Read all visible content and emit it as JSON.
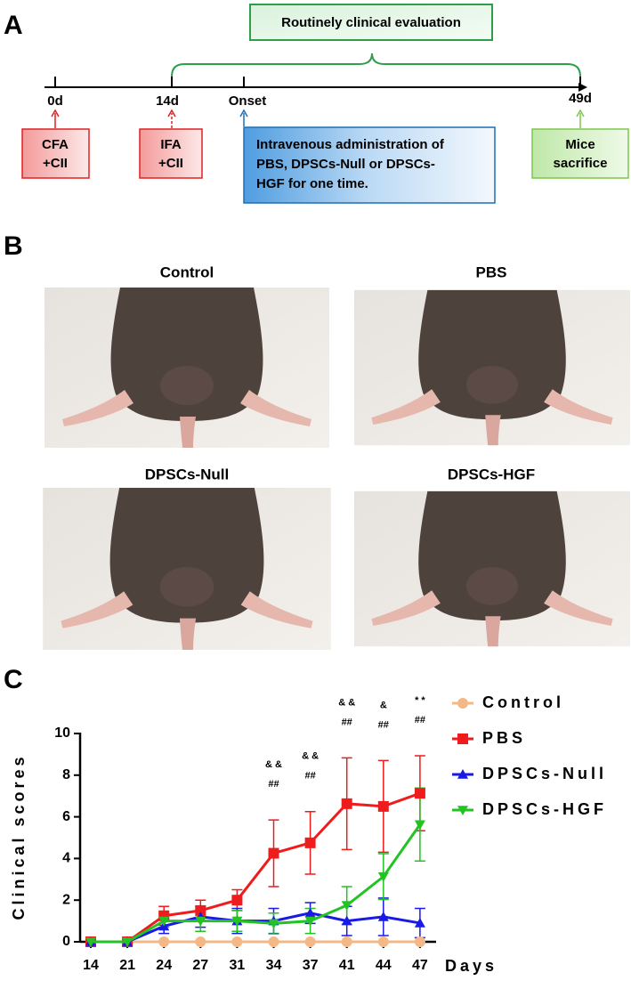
{
  "panel_a": {
    "label": "A",
    "evaluation": "Routinely clinical evaluation",
    "timeline": [
      "0d",
      "14d",
      "Onset",
      "49d"
    ],
    "boxes": [
      [
        "CFA",
        "+CII"
      ],
      [
        "IFA",
        "+CII"
      ],
      [
        "Intravenous administration of",
        "PBS, DPSCs-Null or DPSCs-",
        "HGF  for one time."
      ],
      [
        "Mice",
        "sacrifice"
      ]
    ]
  },
  "panel_b": {
    "label": "B",
    "titles": [
      "Control",
      "PBS",
      "DPSCs-Null",
      "DPSCs-HGF"
    ]
  },
  "panel_c_label": "C",
  "chart_data": {
    "type": "line",
    "ylabel": "Clinical scores",
    "xlabel": "Days",
    "categories": [
      "14",
      "21",
      "24",
      "27",
      "31",
      "34",
      "37",
      "41",
      "44",
      "47"
    ],
    "ylim": [
      0,
      10
    ],
    "yticks": [
      0,
      2,
      4,
      6,
      8,
      10
    ],
    "grid": false,
    "legend": "right",
    "series": [
      {
        "name": "Control",
        "color": "#f4b887",
        "marker": "circle",
        "values": [
          0,
          0,
          0,
          0,
          0,
          0,
          0,
          0,
          0,
          0
        ],
        "errors": [
          0,
          0,
          0,
          0,
          0,
          0,
          0,
          0,
          0,
          0
        ]
      },
      {
        "name": "PBS",
        "color": "#ee1c1c",
        "marker": "square",
        "values": [
          0,
          0,
          1.25,
          1.5,
          2.0,
          4.25,
          4.75,
          6.63,
          6.5,
          7.13
        ],
        "errors": [
          0,
          0,
          0.45,
          0.5,
          0.5,
          1.6,
          1.5,
          2.2,
          2.2,
          1.8
        ]
      },
      {
        "name": "DPSCs-Null",
        "color": "#1a1ae6",
        "marker": "triangle-up",
        "values": [
          0,
          0,
          0.75,
          1.2,
          1.0,
          1.0,
          1.38,
          1.0,
          1.2,
          0.9
        ],
        "errors": [
          0,
          0,
          0.35,
          0.5,
          0.6,
          0.6,
          0.5,
          0.7,
          0.9,
          0.7
        ]
      },
      {
        "name": "DPSCs-HGF",
        "color": "#22c322",
        "marker": "triangle-down",
        "values": [
          0,
          0,
          1.0,
          1.0,
          1.0,
          0.88,
          1.0,
          1.75,
          3.13,
          5.63
        ],
        "errors": [
          0,
          0,
          0.3,
          0.5,
          0.5,
          0.5,
          0.6,
          0.9,
          1.1,
          1.75
        ]
      }
    ],
    "annotations": [
      {
        "category": "34",
        "text": [
          "& &",
          "##"
        ]
      },
      {
        "category": "37",
        "text": [
          "& &",
          "##"
        ]
      },
      {
        "category": "41",
        "text": [
          "& &",
          "##"
        ]
      },
      {
        "category": "44",
        "text": [
          "&",
          "##"
        ]
      },
      {
        "category": "47",
        "text": [
          "* *",
          "##"
        ]
      }
    ]
  }
}
